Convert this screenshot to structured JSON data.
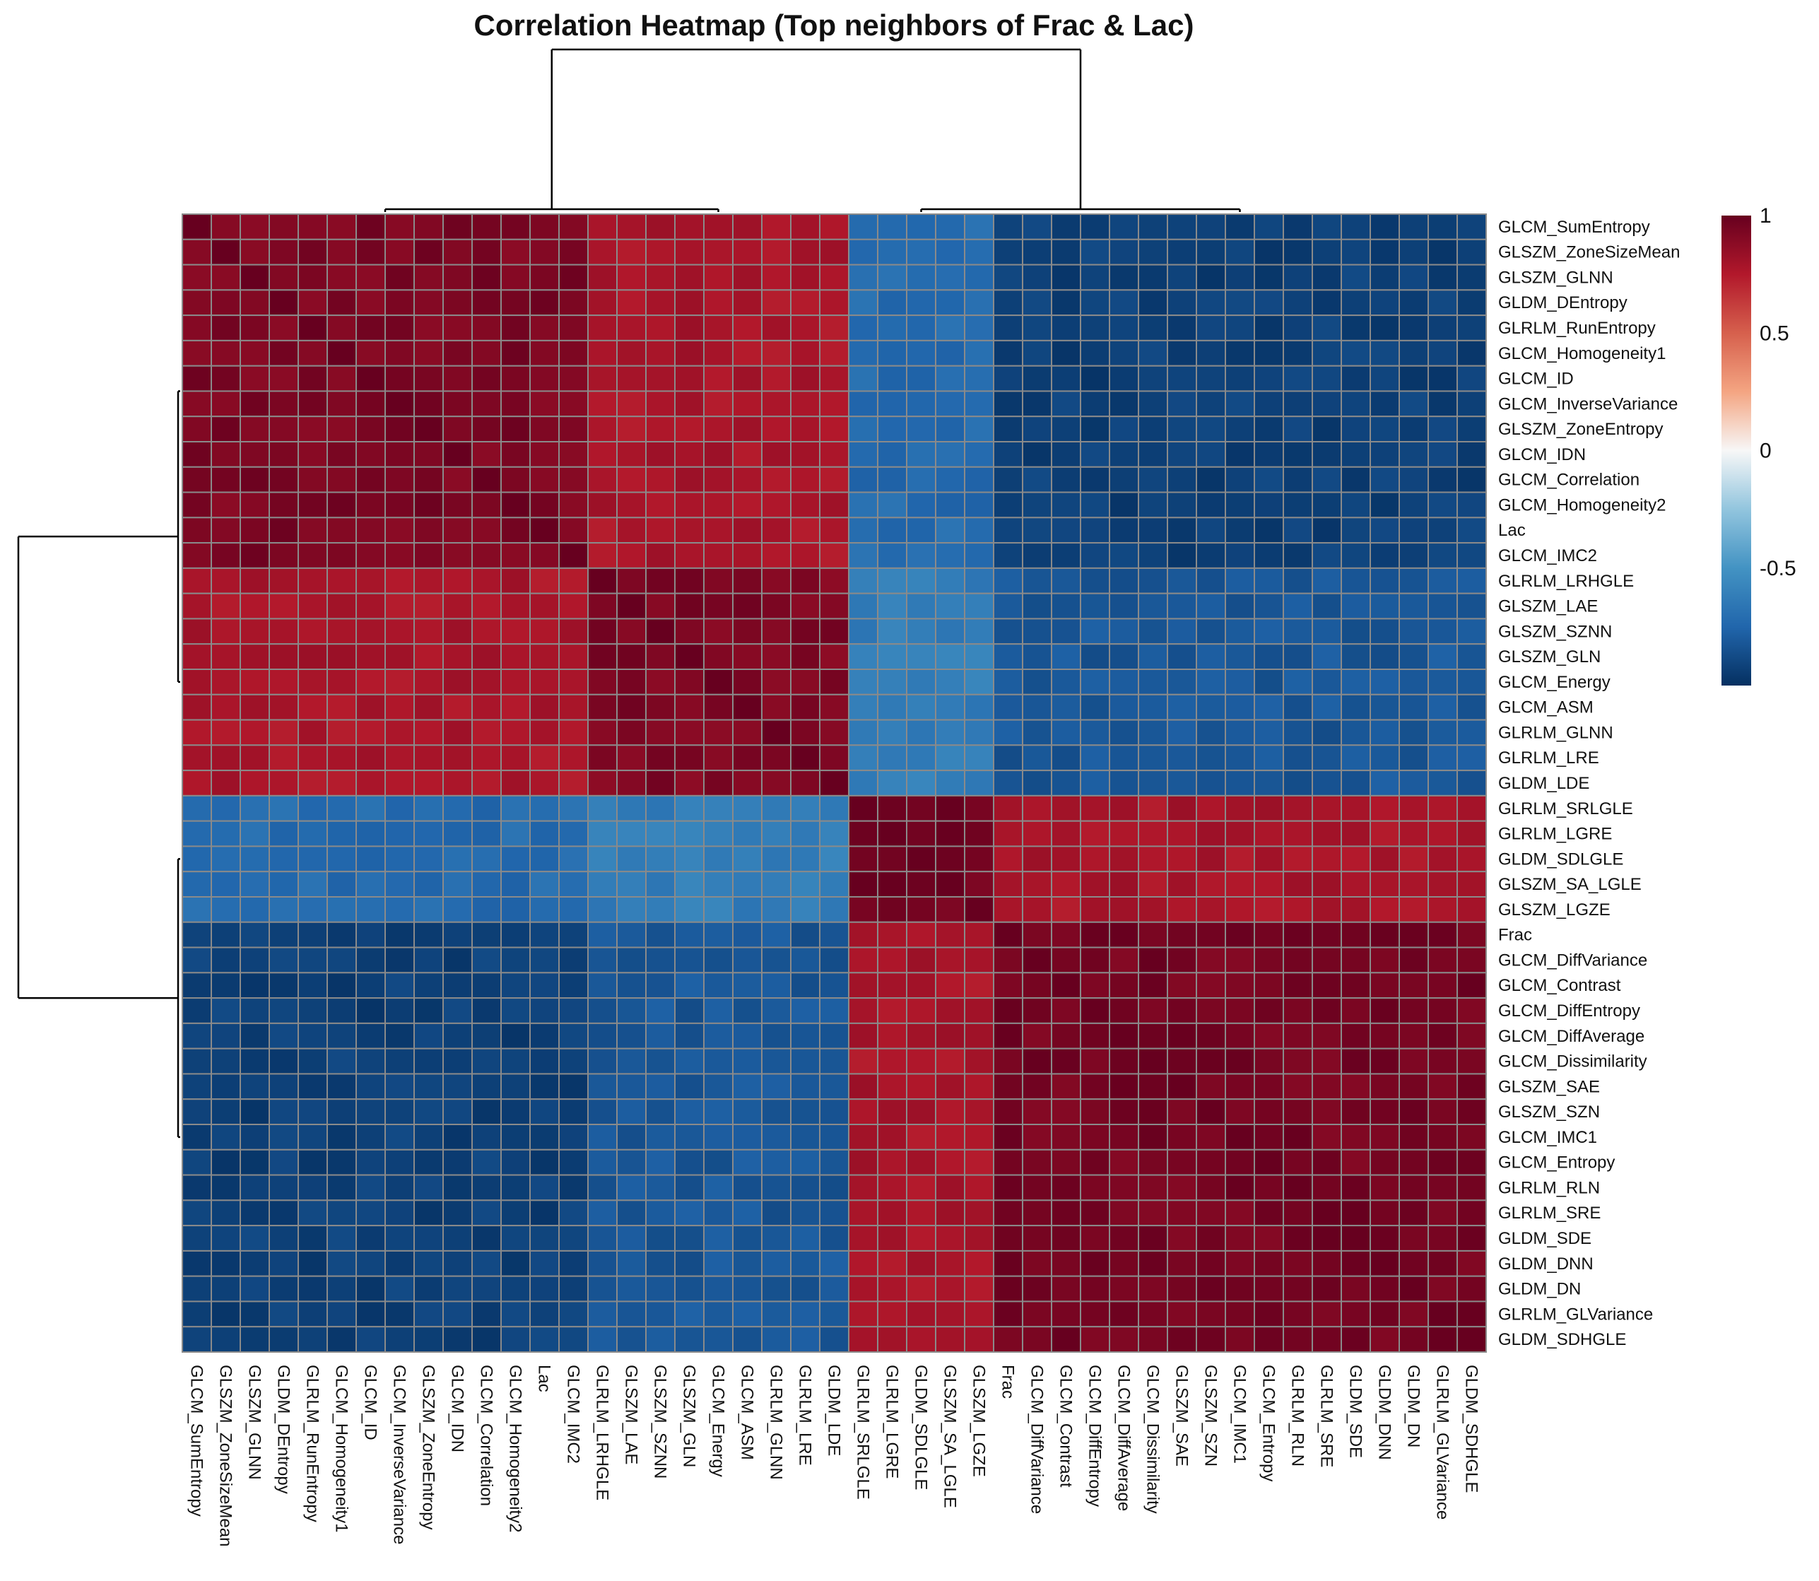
{
  "chart_data": {
    "type": "heatmap",
    "title": "Correlation Heatmap (Top neighbors of Frac & Lac)",
    "features": [
      "GLCM_SumEntropy",
      "GLSZM_ZoneSizeMean",
      "GLSZM_GLNN",
      "GLDM_DEntropy",
      "GLRLM_RunEntropy",
      "GLCM_Homogeneity1",
      "GLCM_ID",
      "GLCM_InverseVariance",
      "GLSZM_ZoneEntropy",
      "GLCM_IDN",
      "GLCM_Correlation",
      "GLCM_Homogeneity2",
      "Lac",
      "GLCM_IMC2",
      "GLRLM_LRHGLE",
      "GLSZM_LAE",
      "GLSZM_SZNN",
      "GLSZM_GLN",
      "GLCM_Energy",
      "GLCM_ASM",
      "GLRLM_GLNN",
      "GLRLM_LRE",
      "GLDM_LDE",
      "GLRLM_SRLGLE",
      "GLRLM_LGRE",
      "GLDM_SDLGLE",
      "GLSZM_SA_LGLE",
      "GLSZM_LGZE",
      "Frac",
      "GLCM_DiffVariance",
      "GLCM_Contrast",
      "GLCM_DiffEntropy",
      "GLCM_DiffAverage",
      "GLCM_Dissimilarity",
      "GLSZM_SAE",
      "GLSZM_SZN",
      "GLCM_IMC1",
      "GLCM_Entropy",
      "GLRLM_RLN",
      "GLRLM_SRE",
      "GLDM_SDE",
      "GLDM_DNN",
      "GLDM_DN",
      "GLRLM_GLVariance",
      "GLDM_SDHGLE"
    ],
    "clusters": [
      14,
      9,
      5,
      17
    ],
    "block_values": [
      [
        0.93,
        0.78,
        -0.72,
        -0.93
      ],
      [
        0.78,
        0.92,
        -0.62,
        -0.82
      ],
      [
        -0.72,
        -0.62,
        0.96,
        0.78
      ],
      [
        -0.93,
        -0.82,
        0.78,
        0.95
      ]
    ],
    "color_scale": {
      "min": -1,
      "max": 1,
      "stops": [
        "#053061",
        "#2166ac",
        "#4393c3",
        "#92c5de",
        "#f7f7f7",
        "#f4a582",
        "#d6604d",
        "#b2182b",
        "#67001f"
      ]
    },
    "legend": {
      "ticks": [
        "1",
        "0.5",
        "0",
        "-0.5"
      ]
    },
    "row_dendrogram": true,
    "col_dendrogram": true
  }
}
